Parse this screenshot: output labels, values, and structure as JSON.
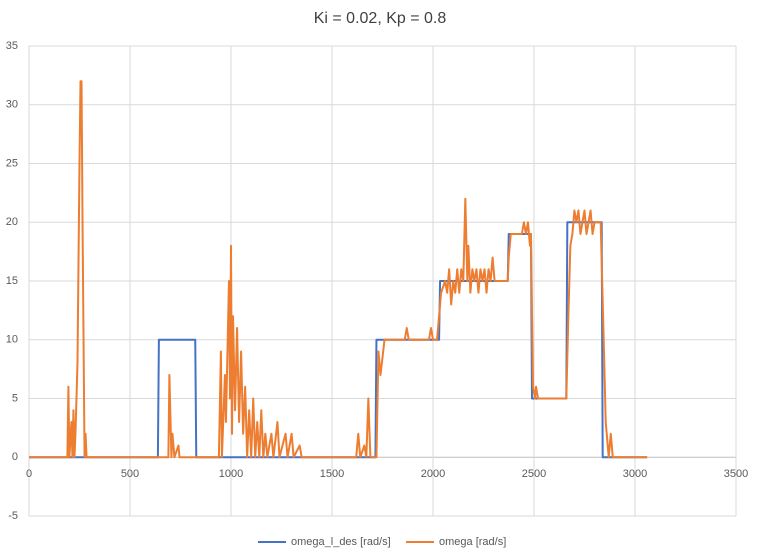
{
  "chart_data": {
    "type": "line",
    "title": "Ki = 0.02, Kp = 0.8",
    "xlim": [
      0,
      3500
    ],
    "xticks": [
      0,
      500,
      1000,
      1500,
      2000,
      2500,
      3000,
      3500
    ],
    "ylim": [
      -5,
      35
    ],
    "yticks": [
      -5,
      0,
      5,
      10,
      15,
      20,
      25,
      30,
      35
    ],
    "grid": true,
    "legend": "bottom",
    "series": [
      {
        "name": "omega_l_des [rad/s]",
        "color": "#4472c4",
        "x": [
          0,
          638,
          643,
          823,
          828,
          1715,
          1720,
          2030,
          2035,
          2370,
          2375,
          2485,
          2490,
          2660,
          2665,
          2835,
          2840,
          3060
        ],
        "values": [
          0,
          0,
          10,
          10,
          0,
          0,
          10,
          10,
          15,
          15,
          19,
          19,
          5,
          5,
          20,
          20,
          0,
          0
        ]
      },
      {
        "name": "omega [rad/s]",
        "color": "#ed7d31",
        "x": [
          0,
          190,
          195,
          200,
          210,
          215,
          220,
          225,
          230,
          240,
          250,
          255,
          260,
          265,
          275,
          280,
          285,
          690,
          695,
          705,
          710,
          720,
          740,
          745,
          940,
          950,
          955,
          970,
          975,
          990,
          995,
          1000,
          1005,
          1010,
          1020,
          1030,
          1040,
          1050,
          1060,
          1070,
          1080,
          1090,
          1100,
          1110,
          1120,
          1130,
          1140,
          1150,
          1160,
          1170,
          1180,
          1200,
          1210,
          1230,
          1240,
          1270,
          1280,
          1300,
          1310,
          1340,
          1350,
          1620,
          1630,
          1640,
          1660,
          1670,
          1680,
          1690,
          1720,
          1730,
          1740,
          1760,
          1860,
          1870,
          1880,
          1980,
          1990,
          2000,
          2020,
          2030,
          2040,
          2060,
          2070,
          2080,
          2090,
          2100,
          2110,
          2120,
          2130,
          2140,
          2150,
          2160,
          2170,
          2175,
          2185,
          2195,
          2205,
          2215,
          2225,
          2235,
          2245,
          2255,
          2265,
          2275,
          2285,
          2295,
          2305,
          2370,
          2375,
          2385,
          2440,
          2450,
          2460,
          2470,
          2480,
          2485,
          2495,
          2505,
          2510,
          2520,
          2660,
          2670,
          2680,
          2690,
          2700,
          2710,
          2720,
          2730,
          2740,
          2750,
          2760,
          2770,
          2780,
          2790,
          2800,
          2830,
          2845,
          2855,
          2870,
          2880,
          2890,
          3060
        ],
        "values": [
          0,
          0,
          6,
          0,
          3,
          0,
          4,
          0,
          2,
          8,
          25,
          32,
          32,
          20,
          0,
          2,
          0,
          0,
          7,
          0,
          2,
          0,
          1,
          0,
          0,
          9,
          0,
          7,
          3,
          15,
          5,
          18,
          2,
          12,
          4,
          11,
          3,
          9,
          2,
          6,
          0,
          4,
          0,
          5,
          0,
          3,
          0,
          4,
          0,
          2,
          0,
          2,
          0,
          3,
          0,
          2,
          0,
          2,
          0,
          1,
          0,
          0,
          2,
          0,
          1,
          0,
          5,
          0,
          0,
          9,
          7,
          10,
          10,
          11,
          10,
          10,
          11,
          10,
          10,
          12,
          14,
          15,
          14,
          16,
          13,
          15,
          14,
          16,
          14,
          16,
          15,
          22,
          15,
          18,
          14,
          16,
          15,
          16,
          14,
          16,
          15,
          16,
          14,
          16,
          15,
          17,
          15,
          15,
          17,
          19,
          19,
          20,
          19,
          20,
          18,
          19,
          6,
          5,
          6,
          5,
          5,
          12,
          18,
          19,
          21,
          20,
          21,
          19,
          20,
          21,
          19,
          20,
          21,
          19,
          20,
          20,
          10,
          3,
          0,
          2,
          0,
          0
        ]
      }
    ]
  }
}
